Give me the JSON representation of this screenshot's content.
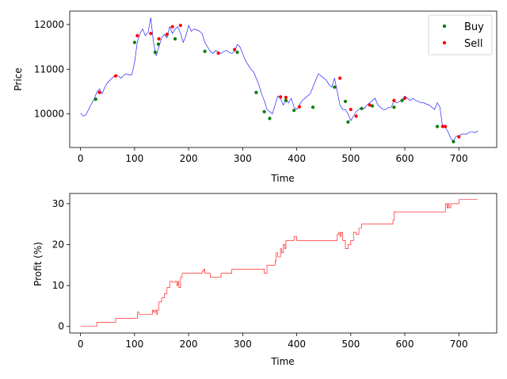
{
  "chart_data": [
    {
      "type": "line",
      "xlabel": "Time",
      "ylabel": "Price",
      "xlim": [
        -20,
        770
      ],
      "ylim": [
        9250,
        12300
      ],
      "xticks": [
        0,
        100,
        200,
        300,
        400,
        500,
        600,
        700
      ],
      "yticks": [
        10000,
        11000,
        12000
      ],
      "legend_position": "top-right",
      "colors": {
        "price": "#0000ff",
        "buy": "#008000",
        "sell": "#ff0000"
      },
      "series": [
        {
          "x": [
            0,
            5,
            10,
            15,
            20,
            25,
            30,
            35,
            40,
            45,
            50,
            55,
            60,
            65,
            70,
            75,
            80,
            85,
            90,
            95,
            100,
            105,
            110,
            115,
            120,
            125,
            130,
            135,
            140,
            145,
            150,
            155,
            160,
            165,
            170,
            175,
            180,
            185,
            190,
            195,
            200,
            205,
            210,
            215,
            220,
            225,
            230,
            235,
            240,
            245,
            250,
            255,
            260,
            265,
            270,
            275,
            280,
            285,
            290,
            295,
            300,
            305,
            310,
            315,
            320,
            325,
            330,
            335,
            340,
            345,
            350,
            355,
            360,
            365,
            370,
            375,
            380,
            385,
            390,
            395,
            400,
            405,
            410,
            415,
            420,
            425,
            430,
            435,
            440,
            445,
            450,
            455,
            460,
            465,
            470,
            475,
            480,
            485,
            490,
            495,
            500,
            505,
            510,
            515,
            520,
            525,
            530,
            535,
            540,
            545,
            550,
            555,
            560,
            565,
            570,
            575,
            580,
            585,
            590,
            595,
            600,
            605,
            610,
            615,
            620,
            625,
            630,
            635,
            640,
            645,
            650,
            655,
            660,
            665,
            670,
            675,
            680,
            685,
            690,
            695,
            700,
            705,
            710,
            715,
            720,
            725,
            730,
            735
          ],
          "values": [
            10020,
            9950,
            9980,
            10100,
            10220,
            10330,
            10480,
            10560,
            10450,
            10600,
            10700,
            10760,
            10820,
            10870,
            10850,
            10800,
            10860,
            10900,
            10870,
            10880,
            11150,
            11600,
            11800,
            11900,
            11750,
            11830,
            12150,
            11600,
            11300,
            11500,
            11700,
            11780,
            11700,
            11950,
            11800,
            11900,
            11950,
            11800,
            11600,
            11750,
            11980,
            11850,
            11900,
            11880,
            11850,
            11800,
            11600,
            11500,
            11400,
            11350,
            11420,
            11380,
            11350,
            11400,
            11420,
            11380,
            11350,
            11400,
            11550,
            11500,
            11350,
            11200,
            11100,
            11000,
            10950,
            10800,
            10650,
            10450,
            10300,
            10100,
            10050,
            10000,
            10200,
            10400,
            10350,
            10200,
            10300,
            10250,
            10350,
            10150,
            10100,
            10200,
            10300,
            10350,
            10400,
            10450,
            10600,
            10750,
            10900,
            10850,
            10800,
            10750,
            10650,
            10600,
            10800,
            10500,
            10200,
            10100,
            10100,
            10000,
            9850,
            9950,
            10050,
            10100,
            10150,
            10120,
            10200,
            10250,
            10300,
            10350,
            10200,
            10150,
            10100,
            10100,
            10150,
            10150,
            10300,
            10250,
            10280,
            10320,
            10400,
            10350,
            10300,
            10350,
            10300,
            10280,
            10250,
            10250,
            10220,
            10200,
            10150,
            10100,
            10250,
            10150,
            9700,
            9700,
            9600,
            9450,
            9400,
            9500,
            9500,
            9550,
            9550,
            9550,
            9600,
            9600,
            9580,
            9620
          ]
        }
      ],
      "buy": {
        "x": [
          28,
          100,
          138,
          144,
          160,
          175,
          230,
          290,
          325,
          340,
          350,
          380,
          395,
          430,
          470,
          490,
          495,
          520,
          540,
          580,
          595,
          660,
          690
        ],
        "values": [
          10330,
          11600,
          11380,
          11560,
          11780,
          11680,
          11400,
          11380,
          10480,
          10050,
          9900,
          10300,
          10080,
          10150,
          10600,
          10280,
          9820,
          10120,
          10180,
          10150,
          10300,
          9720,
          9380
        ]
      },
      "sell": {
        "x": [
          35,
          65,
          105,
          130,
          145,
          160,
          170,
          185,
          255,
          285,
          370,
          380,
          405,
          480,
          500,
          510,
          535,
          580,
          600,
          670,
          675,
          700
        ],
        "values": [
          10480,
          10850,
          11750,
          11800,
          11680,
          11780,
          11950,
          11980,
          11360,
          11440,
          10380,
          10370,
          10160,
          10800,
          10100,
          9950,
          10200,
          10300,
          10350,
          9720,
          9720,
          9490
        ]
      }
    },
    {
      "type": "line",
      "xlabel": "Time",
      "ylabel": "Profit (%)",
      "xlim": [
        -20,
        770
      ],
      "ylim": [
        -1.6,
        32.5
      ],
      "xticks": [
        0,
        100,
        200,
        300,
        400,
        500,
        600,
        700
      ],
      "yticks": [
        0,
        10,
        20,
        30
      ],
      "color": "#ff0000",
      "series": [
        {
          "x": [
            0,
            28,
            30,
            35,
            60,
            65,
            100,
            105,
            108,
            110,
            130,
            133,
            135,
            138,
            140,
            142,
            145,
            150,
            155,
            160,
            165,
            170,
            175,
            178,
            180,
            182,
            185,
            188,
            190,
            195,
            220,
            225,
            228,
            230,
            235,
            240,
            260,
            270,
            280,
            300,
            320,
            330,
            335,
            340,
            345,
            350,
            360,
            362,
            365,
            370,
            372,
            375,
            378,
            380,
            385,
            390,
            395,
            400,
            405,
            440,
            445,
            450,
            455,
            460,
            470,
            475,
            478,
            480,
            482,
            485,
            490,
            495,
            500,
            505,
            510,
            515,
            520,
            530,
            540,
            570,
            575,
            578,
            580,
            600,
            620,
            660,
            670,
            675,
            678,
            680,
            682,
            685,
            690,
            695,
            700,
            705,
            710,
            735
          ],
          "values": [
            0,
            0,
            1,
            1,
            1,
            2,
            2,
            3.5,
            3,
            3,
            3,
            4,
            3.5,
            4,
            3,
            4,
            6,
            7,
            8,
            9.5,
            11,
            10.8,
            11,
            10,
            11,
            9.5,
            12,
            13,
            13,
            13,
            13,
            13.5,
            14,
            13,
            13,
            12,
            13,
            13,
            14,
            14,
            14,
            14,
            14,
            13,
            15,
            15,
            16,
            18,
            17,
            19,
            18,
            20,
            19,
            21,
            21,
            21,
            22,
            21,
            21,
            21,
            21,
            21,
            21,
            21,
            21,
            22.5,
            23,
            22,
            23,
            21,
            19,
            20,
            21,
            23,
            22.5,
            24,
            25,
            25,
            25,
            25,
            25,
            26,
            28,
            28,
            28,
            28,
            28,
            30,
            29,
            30,
            29,
            30,
            30,
            30,
            31,
            31,
            31,
            31
          ]
        }
      ]
    }
  ],
  "legend": {
    "buy_label": "Buy",
    "sell_label": "Sell"
  }
}
